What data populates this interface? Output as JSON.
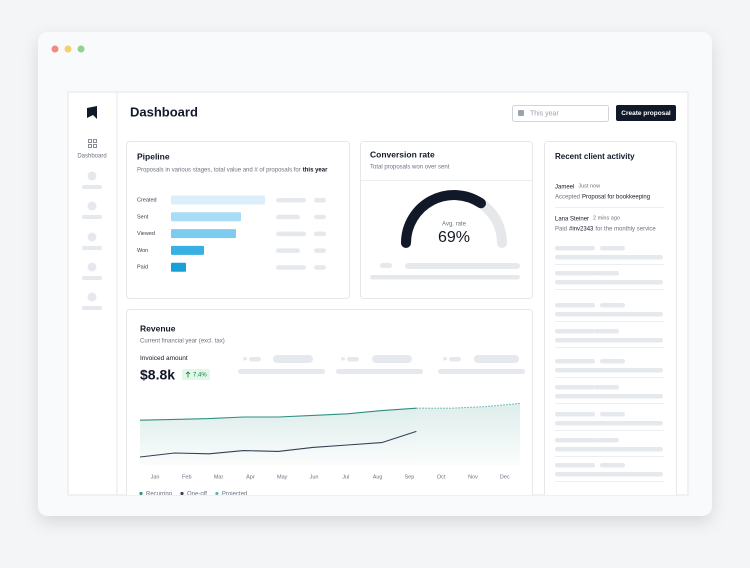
{
  "sidebar": {
    "nav_label": "Dashboard"
  },
  "header": {
    "title": "Dashboard",
    "date_filter": "This year",
    "button": "Create proposal"
  },
  "pipeline": {
    "title": "Pipeline",
    "subtitle": "Proposals in various stages, total value and # of proposals for",
    "subtitle_bold": "this year",
    "chart_data": {
      "type": "bar",
      "categories": [
        "Created",
        "Sent",
        "Viewed",
        "Won",
        "Paid"
      ],
      "values": [
        94,
        70,
        65,
        33,
        15
      ],
      "colors": [
        "#dbeefa",
        "#a9dcf5",
        "#7dcbef",
        "#38b0e3",
        "#1a9fd6"
      ],
      "xlim": [
        0,
        100
      ]
    }
  },
  "conversion": {
    "title": "Conversion rate",
    "subtitle": "Total proposals won over sent",
    "chart_data": {
      "type": "gauge",
      "label": "Avg. rate",
      "value": 69,
      "value_label": "69%",
      "ylim": [
        0,
        100
      ],
      "color": "#111827",
      "track_color": "#e5e7eb"
    }
  },
  "activity": {
    "title": "Recent client activity",
    "items": [
      {
        "name": "Jameel",
        "time": "Just now",
        "action": "Accepted",
        "object": "Proposal for bookkeeping"
      },
      {
        "name": "Lana Steiner",
        "time": "2 mins ago",
        "action": "Paid",
        "object": "#inv2343",
        "rest": "for the monthly service"
      }
    ]
  },
  "revenue": {
    "title": "Revenue",
    "subtitle": "Current financial year (excl. tax)",
    "metric_label": "Invoiced amount",
    "metric_value": "$8.8k",
    "change": "7.4%",
    "chart_data": {
      "type": "line",
      "categories": [
        "Jan",
        "Feb",
        "Mar",
        "Apr",
        "May",
        "Jun",
        "Jul",
        "Aug",
        "Sep",
        "Oct",
        "Nov",
        "Dec"
      ],
      "ylim": [
        0,
        100
      ],
      "series": [
        {
          "name": "Recurring",
          "color": "#2f8f83",
          "dashed": false,
          "area": true,
          "values": [
            56,
            57,
            58,
            60,
            60,
            62,
            64,
            68,
            71,
            null,
            null,
            null
          ]
        },
        {
          "name": "One-off",
          "color": "#334155",
          "dashed": false,
          "area": false,
          "values": [
            10,
            15,
            14,
            18,
            17,
            22,
            25,
            28,
            42,
            null,
            null,
            null
          ]
        },
        {
          "name": "Projected",
          "color": "#5fb5aa",
          "dashed": true,
          "area": true,
          "values": [
            null,
            null,
            null,
            null,
            null,
            null,
            null,
            null,
            71,
            71,
            73,
            77
          ]
        }
      ]
    }
  }
}
